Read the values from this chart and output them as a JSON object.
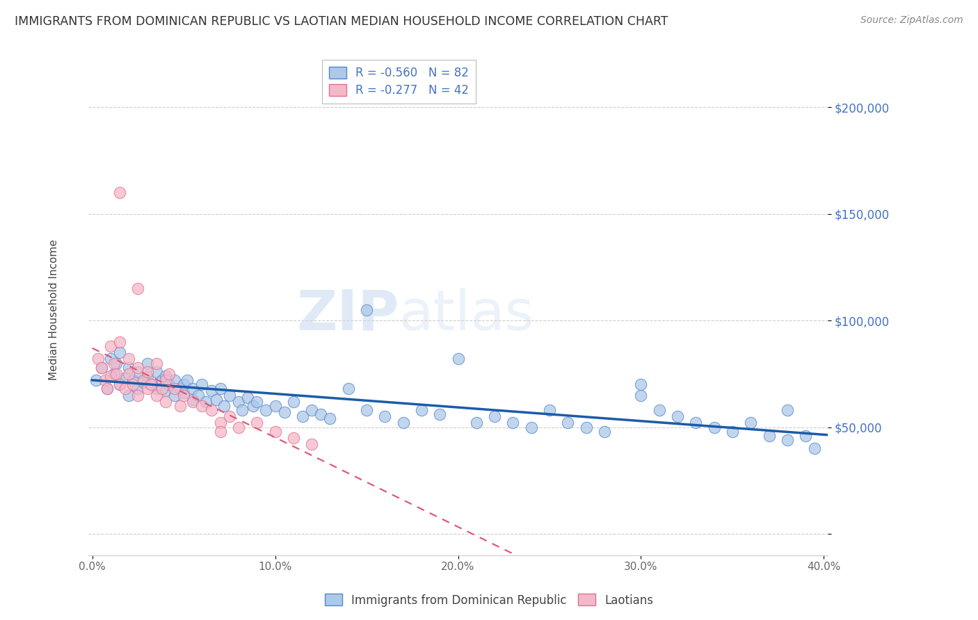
{
  "title": "IMMIGRANTS FROM DOMINICAN REPUBLIC VS LAOTIAN MEDIAN HOUSEHOLD INCOME CORRELATION CHART",
  "source": "Source: ZipAtlas.com",
  "ylabel": "Median Household Income",
  "xlim": [
    -0.002,
    0.402
  ],
  "ylim": [
    -10000,
    225000
  ],
  "yticks": [
    0,
    50000,
    100000,
    150000,
    200000
  ],
  "xticks": [
    0.0,
    0.1,
    0.2,
    0.3,
    0.4
  ],
  "xtick_labels": [
    "0.0%",
    "10.0%",
    "20.0%",
    "30.0%",
    "40.0%"
  ],
  "ytick_labels": [
    "",
    "$50,000",
    "$100,000",
    "$150,000",
    "$200,000"
  ],
  "blue_R": -0.56,
  "blue_N": 82,
  "pink_R": -0.277,
  "pink_N": 42,
  "blue_color": "#adc8e8",
  "blue_edge_color": "#5588cc",
  "blue_line_color": "#1a5ca8",
  "pink_color": "#f5b8c8",
  "pink_edge_color": "#e07090",
  "pink_line_color": "#e05878",
  "legend_label_blue": "Immigrants from Dominican Republic",
  "legend_label_pink": "Laotians",
  "watermark_zip": "ZIP",
  "watermark_atlas": "atlas",
  "blue_scatter_x": [
    0.002,
    0.005,
    0.008,
    0.01,
    0.012,
    0.013,
    0.015,
    0.015,
    0.018,
    0.02,
    0.02,
    0.022,
    0.025,
    0.025,
    0.028,
    0.03,
    0.03,
    0.032,
    0.035,
    0.035,
    0.038,
    0.04,
    0.04,
    0.042,
    0.045,
    0.045,
    0.048,
    0.05,
    0.05,
    0.052,
    0.055,
    0.055,
    0.058,
    0.06,
    0.062,
    0.065,
    0.068,
    0.07,
    0.072,
    0.075,
    0.08,
    0.082,
    0.085,
    0.088,
    0.09,
    0.095,
    0.1,
    0.105,
    0.11,
    0.115,
    0.12,
    0.125,
    0.13,
    0.14,
    0.15,
    0.16,
    0.17,
    0.18,
    0.19,
    0.2,
    0.21,
    0.22,
    0.23,
    0.24,
    0.25,
    0.26,
    0.27,
    0.28,
    0.3,
    0.3,
    0.31,
    0.32,
    0.33,
    0.34,
    0.35,
    0.36,
    0.37,
    0.38,
    0.38,
    0.39,
    0.395,
    0.15
  ],
  "blue_scatter_y": [
    72000,
    78000,
    68000,
    82000,
    75000,
    80000,
    70000,
    85000,
    73000,
    78000,
    65000,
    72000,
    76000,
    68000,
    71000,
    74000,
    80000,
    70000,
    68000,
    76000,
    72000,
    67000,
    74000,
    70000,
    72000,
    65000,
    68000,
    70000,
    66000,
    72000,
    68000,
    63000,
    65000,
    70000,
    62000,
    67000,
    63000,
    68000,
    60000,
    65000,
    62000,
    58000,
    64000,
    60000,
    62000,
    58000,
    60000,
    57000,
    62000,
    55000,
    58000,
    56000,
    54000,
    68000,
    58000,
    55000,
    52000,
    58000,
    56000,
    82000,
    52000,
    55000,
    52000,
    50000,
    58000,
    52000,
    50000,
    48000,
    65000,
    70000,
    58000,
    55000,
    52000,
    50000,
    48000,
    52000,
    46000,
    58000,
    44000,
    46000,
    40000,
    105000
  ],
  "pink_scatter_x": [
    0.003,
    0.005,
    0.007,
    0.008,
    0.01,
    0.01,
    0.012,
    0.013,
    0.015,
    0.015,
    0.018,
    0.02,
    0.02,
    0.022,
    0.025,
    0.025,
    0.028,
    0.03,
    0.03,
    0.032,
    0.035,
    0.035,
    0.038,
    0.04,
    0.04,
    0.042,
    0.045,
    0.048,
    0.05,
    0.055,
    0.06,
    0.065,
    0.07,
    0.075,
    0.08,
    0.09,
    0.1,
    0.11,
    0.12,
    0.025,
    0.015,
    0.07
  ],
  "pink_scatter_y": [
    82000,
    78000,
    72000,
    68000,
    88000,
    74000,
    80000,
    75000,
    70000,
    90000,
    68000,
    75000,
    82000,
    70000,
    78000,
    65000,
    72000,
    68000,
    76000,
    70000,
    65000,
    80000,
    68000,
    72000,
    62000,
    75000,
    68000,
    60000,
    65000,
    62000,
    60000,
    58000,
    52000,
    55000,
    50000,
    52000,
    48000,
    45000,
    42000,
    115000,
    160000,
    48000
  ]
}
